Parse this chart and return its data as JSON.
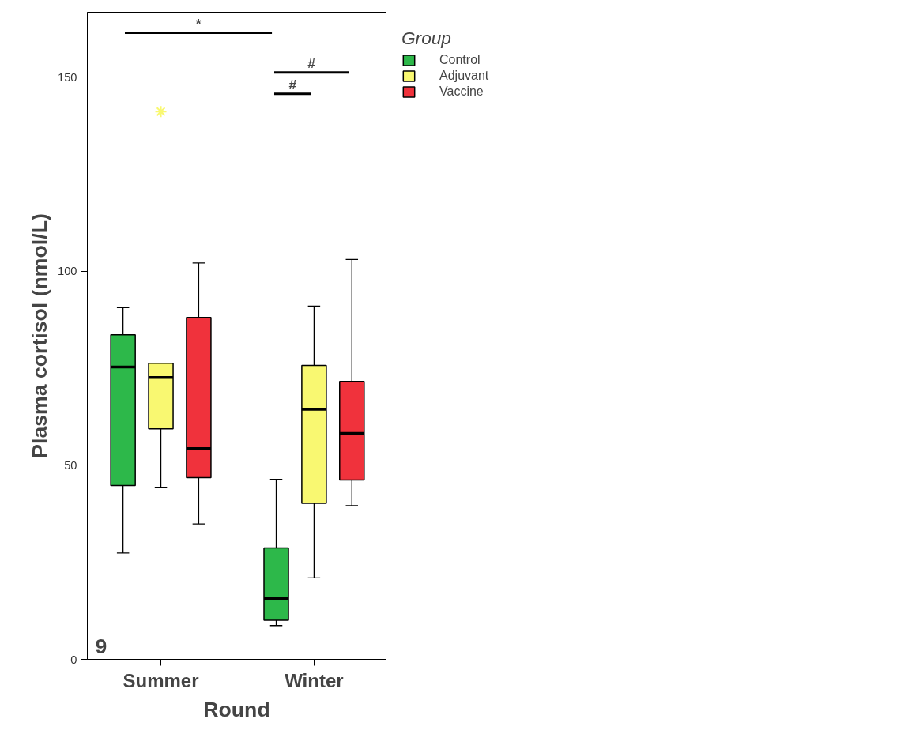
{
  "chart_data": {
    "type": "box",
    "xlabel": "Round",
    "ylabel": "Plasma cortisol (nmol/L)",
    "legend_title": "Group",
    "legend": "top right",
    "grid": false,
    "categories": [
      "Summer",
      "Winter"
    ],
    "ylim": [
      0,
      166.7
    ],
    "yticks": [
      0,
      50,
      100,
      150
    ],
    "series": [
      {
        "name": "Control",
        "color": "#2db84a",
        "boxes": [
          {
            "low": 27.4,
            "q1": 44.8,
            "median": 75.3,
            "q3": 83.6,
            "high": 90.6
          },
          {
            "low": 8.7,
            "q1": 10.1,
            "median": 15.7,
            "q3": 28.7,
            "high": 46.4
          }
        ]
      },
      {
        "name": "Adjuvant",
        "color": "#f9f871",
        "boxes": [
          {
            "low": 44.2,
            "q1": 59.4,
            "median": 72.6,
            "q3": 76.3,
            "high": 76.3,
            "outliers": [
              141.1
            ]
          },
          {
            "low": 21.0,
            "q1": 40.2,
            "median": 64.4,
            "q3": 75.7,
            "high": 91.0
          }
        ]
      },
      {
        "name": "Vaccine",
        "color": "#f0323c",
        "boxes": [
          {
            "low": 34.9,
            "q1": 46.8,
            "median": 54.3,
            "q3": 88.1,
            "high": 102.1
          },
          {
            "low": 39.6,
            "q1": 46.2,
            "median": 58.2,
            "q3": 71.6,
            "high": 103.0
          }
        ]
      }
    ],
    "annotations": [
      "*",
      "#",
      "#",
      "9"
    ]
  }
}
